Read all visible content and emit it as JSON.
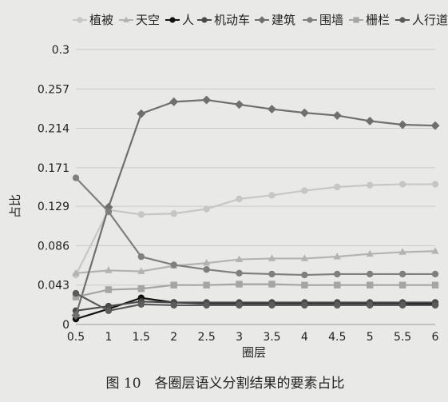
{
  "chart_data": {
    "type": "line",
    "title": "",
    "xlabel": "圈层",
    "ylabel": "占比",
    "x": [
      0.5,
      1,
      1.5,
      2,
      2.5,
      3,
      3.5,
      4,
      4.5,
      5,
      5.5,
      6
    ],
    "x_ticks": [
      "0.5",
      "1",
      "1.5",
      "2",
      "2.5",
      "3",
      "3.5",
      "4",
      "4.5",
      "5",
      "5.5",
      "6"
    ],
    "ylim": [
      0,
      0.3
    ],
    "y_ticks": [
      0,
      0.043,
      0.086,
      0.129,
      0.171,
      0.214,
      0.257,
      0.3
    ],
    "y_tick_labels": [
      "0",
      "0.043",
      "0.086",
      "0.129",
      "0.171",
      "0.214",
      "0.257",
      "0.3"
    ],
    "grid": "horizontal",
    "legend_position": "top",
    "series": [
      {
        "name": "植被",
        "marker": "circle",
        "color": "#c6c6c6",
        "values": [
          0.054,
          0.125,
          0.12,
          0.121,
          0.126,
          0.137,
          0.141,
          0.146,
          0.15,
          0.152,
          0.153,
          0.153
        ]
      },
      {
        "name": "天空",
        "marker": "triangle",
        "color": "#b3b3b3",
        "values": [
          0.056,
          0.059,
          0.058,
          0.064,
          0.067,
          0.071,
          0.072,
          0.072,
          0.074,
          0.077,
          0.079,
          0.08
        ]
      },
      {
        "name": "人",
        "marker": "circle",
        "color": "#111111",
        "values": [
          0.006,
          0.017,
          0.029,
          0.024,
          0.023,
          0.023,
          0.023,
          0.023,
          0.023,
          0.023,
          0.023,
          0.022
        ]
      },
      {
        "name": "机动车",
        "marker": "circle",
        "color": "#4a4a4a",
        "values": [
          0.015,
          0.02,
          0.025,
          0.024,
          0.024,
          0.024,
          0.024,
          0.024,
          0.024,
          0.024,
          0.024,
          0.024
        ]
      },
      {
        "name": "建筑",
        "marker": "diamond",
        "color": "#6f6f6f",
        "values": [
          0.01,
          0.128,
          0.23,
          0.243,
          0.245,
          0.24,
          0.235,
          0.231,
          0.228,
          0.222,
          0.218,
          0.217
        ]
      },
      {
        "name": "围墙",
        "marker": "circle",
        "color": "#7f7f7f",
        "values": [
          0.16,
          0.123,
          0.074,
          0.065,
          0.06,
          0.056,
          0.055,
          0.054,
          0.055,
          0.055,
          0.055,
          0.055
        ]
      },
      {
        "name": "栅栏",
        "marker": "square",
        "color": "#a5a5a5",
        "values": [
          0.03,
          0.038,
          0.039,
          0.043,
          0.043,
          0.044,
          0.044,
          0.043,
          0.043,
          0.043,
          0.043,
          0.043
        ]
      },
      {
        "name": "人行道",
        "marker": "circle",
        "color": "#5b5b5b",
        "values": [
          0.034,
          0.015,
          0.022,
          0.021,
          0.021,
          0.021,
          0.021,
          0.021,
          0.021,
          0.021,
          0.021,
          0.021
        ]
      }
    ]
  },
  "caption": "图 10　各圈层语义分割结果的要素占比"
}
